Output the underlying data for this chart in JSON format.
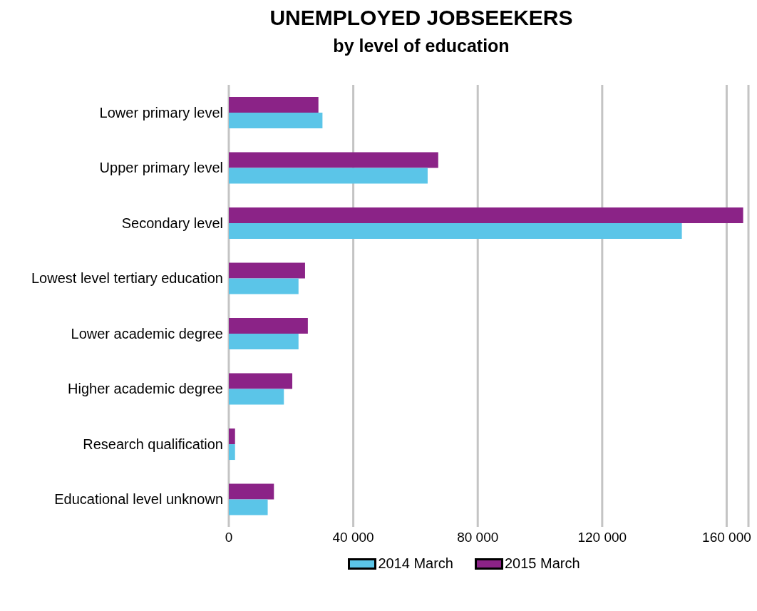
{
  "chart_data": {
    "type": "bar",
    "orientation": "horizontal",
    "title": "UNEMPLOYED JOBSEEKERS",
    "subtitle": "by level of education",
    "categories": [
      "Lower primary level",
      "Upper primary level",
      "Secondary level",
      "Lowest level tertiary education",
      "Lower academic degree",
      "Higher academic degree",
      "Research qualification",
      "Educational level unknown"
    ],
    "series": [
      {
        "name": "2014 March",
        "color": "#5bc5e8",
        "values": [
          30100,
          63900,
          145600,
          22400,
          22400,
          17700,
          2000,
          12500
        ]
      },
      {
        "name": "2015 March",
        "color": "#8b2387",
        "values": [
          28800,
          67300,
          165300,
          24500,
          25400,
          20400,
          2000,
          14500
        ]
      }
    ],
    "xlim": [
      0,
      167000
    ],
    "xticks": [
      0,
      {
        "value": 40000,
        "label": "40 000"
      },
      {
        "value": 80000,
        "label": "80 000"
      },
      {
        "value": 120000,
        "label": "120 000"
      },
      {
        "value": 160000,
        "label": "160 000"
      }
    ],
    "grid": "x",
    "legend": "bottom"
  }
}
